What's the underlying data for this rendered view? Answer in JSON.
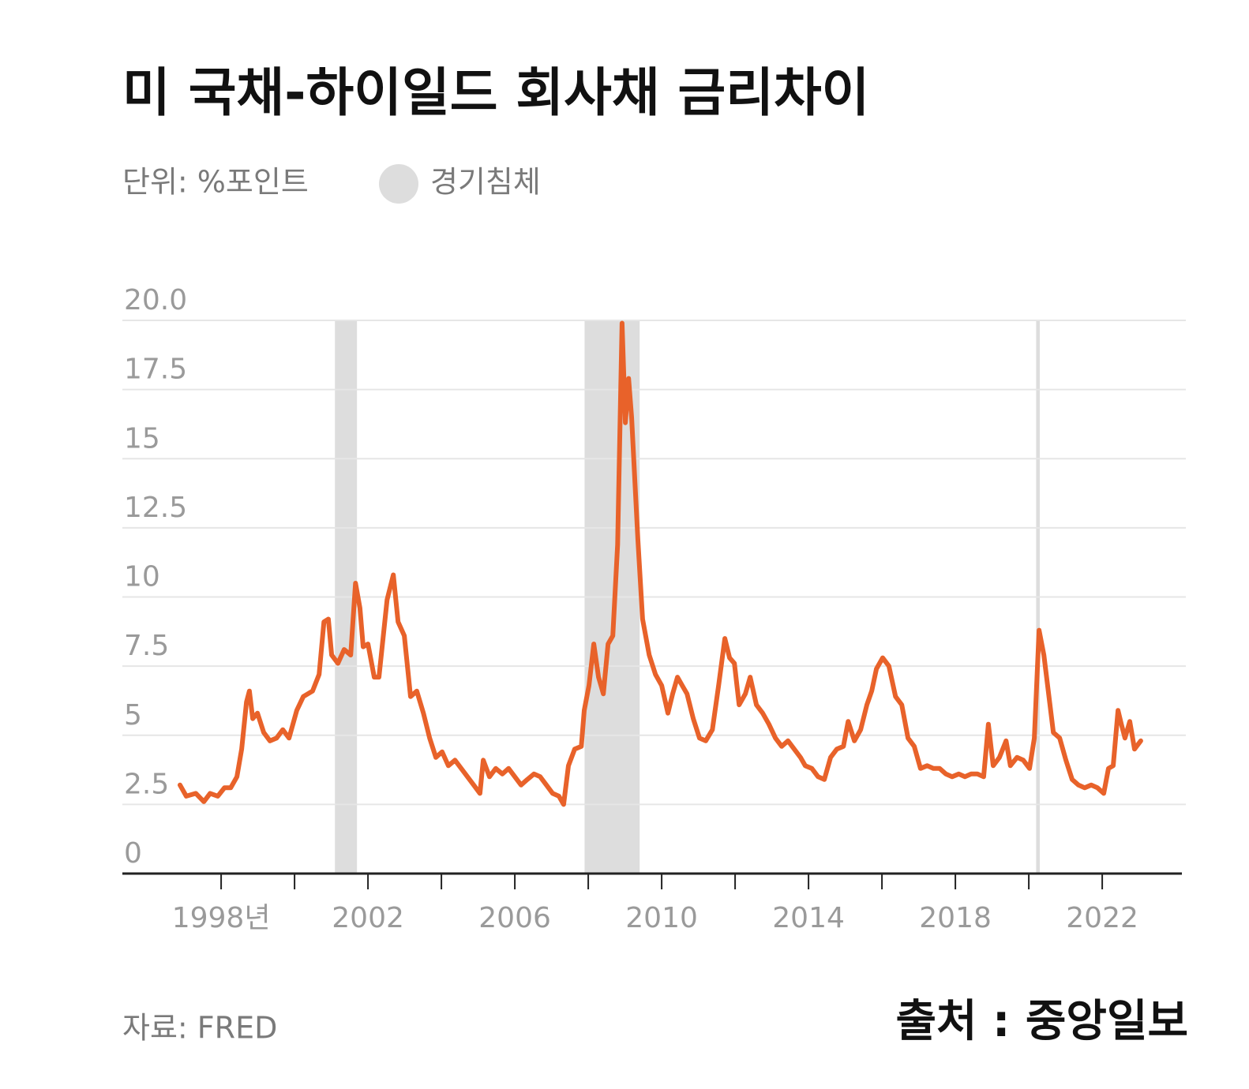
{
  "chart_data": {
    "type": "line",
    "title": "미 국채-하이일드 회사채 금리차이",
    "subtitle": "단위: %포인트",
    "legend_label": "경기침체",
    "source": "자료: FRED",
    "watermark": "출처 : 중앙일보",
    "color": "#e8622a",
    "recession_color": "#dddddd",
    "grid": true,
    "xlim": [
      1995.31,
      2024.17
    ],
    "ylim": [
      0,
      20
    ],
    "yticks": [
      0,
      2.5,
      5,
      7.5,
      10,
      12.5,
      15,
      17.5,
      {
        "value": 20,
        "label": "20.0"
      }
    ],
    "xticks": [
      {
        "value": 1998,
        "label": "1998년"
      },
      {
        "value": 2000,
        "label": null
      },
      2002,
      {
        "value": 2004,
        "label": null
      },
      2006,
      {
        "value": 2008,
        "label": null
      },
      2010,
      {
        "value": 2012,
        "label": null
      },
      2014,
      {
        "value": 2016,
        "label": null
      },
      2018,
      {
        "value": 2020,
        "label": null
      },
      2022
    ],
    "recessions": [
      [
        2001.1,
        2001.7
      ],
      [
        2007.9,
        2009.4
      ],
      [
        2020.2,
        2020.3
      ]
    ],
    "x": [
      1996.88,
      1997.05,
      1997.31,
      1997.53,
      1997.7,
      1997.91,
      1998.09,
      1998.26,
      1998.43,
      1998.56,
      1998.69,
      1998.77,
      1998.86,
      1998.99,
      1999.16,
      1999.33,
      1999.51,
      1999.68,
      1999.85,
      2000.06,
      2000.24,
      2000.49,
      2000.67,
      2000.8,
      2000.92,
      2001.01,
      2001.18,
      2001.35,
      2001.53,
      2001.66,
      2001.78,
      2001.87,
      2002.0,
      2002.17,
      2002.3,
      2002.52,
      2002.69,
      2002.82,
      2002.99,
      2003.16,
      2003.33,
      2003.51,
      2003.68,
      2003.85,
      2004.02,
      2004.19,
      2004.37,
      2004.54,
      2004.71,
      2004.88,
      2005.05,
      2005.14,
      2005.31,
      2005.48,
      2005.66,
      2005.83,
      2006.0,
      2006.17,
      2006.34,
      2006.52,
      2006.69,
      2006.86,
      2007.03,
      2007.2,
      2007.33,
      2007.46,
      2007.63,
      2007.81,
      2007.89,
      2008.02,
      2008.15,
      2008.28,
      2008.41,
      2008.54,
      2008.67,
      2008.8,
      2008.92,
      2009.01,
      2009.1,
      2009.18,
      2009.35,
      2009.48,
      2009.66,
      2009.83,
      2010.0,
      2010.17,
      2010.3,
      2010.43,
      2010.56,
      2010.69,
      2010.86,
      2011.03,
      2011.2,
      2011.38,
      2011.55,
      2011.72,
      2011.85,
      2011.98,
      2012.11,
      2012.28,
      2012.41,
      2012.58,
      2012.75,
      2012.92,
      2013.1,
      2013.27,
      2013.44,
      2013.61,
      2013.78,
      2013.91,
      2014.09,
      2014.26,
      2014.43,
      2014.6,
      2014.77,
      2014.95,
      2015.08,
      2015.25,
      2015.42,
      2015.59,
      2015.72,
      2015.85,
      2016.02,
      2016.19,
      2016.37,
      2016.54,
      2016.71,
      2016.88,
      2017.05,
      2017.23,
      2017.4,
      2017.57,
      2017.74,
      2017.91,
      2018.09,
      2018.26,
      2018.43,
      2018.6,
      2018.77,
      2018.9,
      2019.03,
      2019.2,
      2019.38,
      2019.5,
      2019.68,
      2019.85,
      2020.02,
      2020.15,
      2020.28,
      2020.41,
      2020.54,
      2020.67,
      2020.84,
      2021.01,
      2021.18,
      2021.35,
      2021.52,
      2021.7,
      2021.87,
      2022.04,
      2022.17,
      2022.3,
      2022.43,
      2022.52,
      2022.62,
      2022.75,
      2022.88,
      2023.05
    ],
    "values": [
      3.2,
      2.8,
      2.9,
      2.6,
      2.9,
      2.8,
      3.1,
      3.1,
      3.5,
      4.5,
      6.2,
      6.6,
      5.6,
      5.8,
      5.1,
      4.8,
      4.9,
      5.2,
      4.9,
      5.9,
      6.4,
      6.6,
      7.2,
      9.1,
      9.2,
      7.9,
      7.6,
      8.1,
      7.9,
      10.5,
      9.6,
      8.2,
      8.3,
      7.1,
      7.1,
      9.9,
      10.8,
      9.1,
      8.6,
      6.4,
      6.6,
      5.8,
      4.9,
      4.2,
      4.4,
      3.9,
      4.1,
      3.8,
      3.5,
      3.2,
      2.9,
      4.1,
      3.5,
      3.8,
      3.6,
      3.8,
      3.5,
      3.2,
      3.4,
      3.6,
      3.5,
      3.2,
      2.9,
      2.8,
      2.5,
      3.9,
      4.5,
      4.6,
      5.9,
      6.8,
      8.3,
      7.1,
      6.5,
      8.3,
      8.6,
      11.9,
      19.9,
      16.3,
      17.9,
      16.5,
      12.1,
      9.2,
      7.9,
      7.2,
      6.8,
      5.8,
      6.5,
      7.1,
      6.8,
      6.5,
      5.6,
      4.9,
      4.8,
      5.2,
      6.8,
      8.5,
      7.8,
      7.6,
      6.1,
      6.5,
      7.1,
      6.1,
      5.8,
      5.4,
      4.9,
      4.6,
      4.8,
      4.5,
      4.2,
      3.9,
      3.8,
      3.5,
      3.4,
      4.2,
      4.5,
      4.6,
      5.5,
      4.8,
      5.2,
      6.1,
      6.6,
      7.4,
      7.8,
      7.5,
      6.4,
      6.1,
      4.9,
      4.6,
      3.8,
      3.9,
      3.8,
      3.8,
      3.6,
      3.5,
      3.6,
      3.5,
      3.6,
      3.6,
      3.5,
      5.4,
      3.9,
      4.2,
      4.8,
      3.9,
      4.2,
      4.1,
      3.8,
      4.9,
      8.8,
      7.9,
      6.5,
      5.1,
      4.9,
      4.1,
      3.4,
      3.2,
      3.1,
      3.2,
      3.1,
      2.9,
      3.8,
      3.9,
      5.9,
      5.4,
      4.9,
      5.5,
      4.5,
      4.8
    ]
  }
}
